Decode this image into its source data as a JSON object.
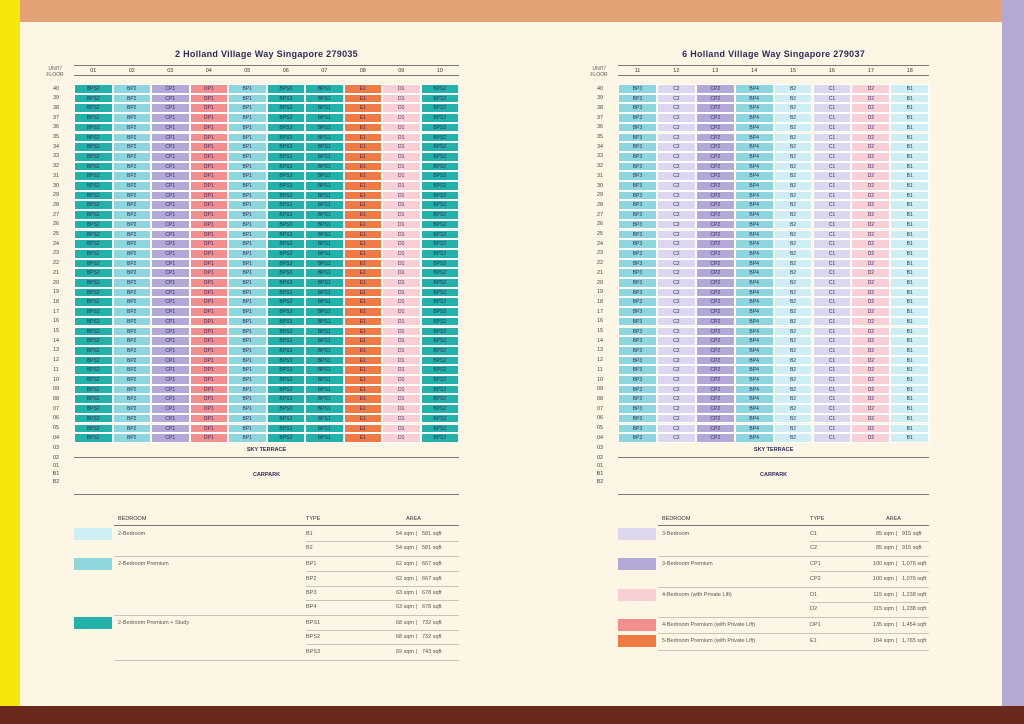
{
  "colors": {
    "frame_top": "#e3a275",
    "frame_left": "#f5e70c",
    "frame_right": "#b4a8d4",
    "frame_bottom": "#6a2a1b",
    "page_bg": "#fdf6e4",
    "B": "#cdeef2",
    "BP": "#8ed6de",
    "BPS": "#23b2a9",
    "C": "#dcd7ee",
    "CP": "#b4a8d8",
    "D": "#f9cfd6",
    "DP": "#f28e8e",
    "E": "#f07a44"
  },
  "corner_label": [
    "UNIT/",
    "FLOOR"
  ],
  "floors_top": [
    "40",
    "39",
    "38",
    "37",
    "36",
    "35",
    "34",
    "33",
    "32",
    "31",
    "30",
    "29",
    "28",
    "27",
    "26",
    "25",
    "24",
    "23",
    "22",
    "21",
    "20",
    "19",
    "18",
    "17",
    "16",
    "15",
    "14",
    "13",
    "12",
    "11",
    "10",
    "09",
    "08",
    "07",
    "06",
    "05",
    "04"
  ],
  "floors_lower": [
    "03",
    "02",
    "01",
    "B1",
    "B2"
  ],
  "sky_terrace_label": "SKY TERRACE",
  "carpark_label": "CARPARK",
  "blocks": [
    {
      "title": "2 Holland Village Way Singapore 279035",
      "units": [
        "01",
        "02",
        "03",
        "04",
        "05",
        "06",
        "07",
        "08",
        "09",
        "10"
      ],
      "types": [
        "BPS2",
        "BP2",
        "CP1",
        "DP1",
        "BP1",
        "BPS3",
        "BPS1",
        "E1",
        "D1",
        "BPS2"
      ],
      "colorkeys": [
        "BPS",
        "BP",
        "CP",
        "DP",
        "BP",
        "BPS",
        "BPS",
        "E",
        "D",
        "BPS"
      ],
      "legend": {
        "headers": [
          "BEDROOM",
          "TYPE",
          "AREA"
        ],
        "groups": [
          {
            "name": "2-Bedroom",
            "color": "B",
            "rows": [
              [
                "B1",
                "54 sqm",
                "581 sqft"
              ],
              [
                "B2",
                "54 sqm",
                "581 sqft"
              ]
            ]
          },
          {
            "name": "2-Bedroom Premium",
            "color": "BP",
            "rows": [
              [
                "BP1",
                "62 sqm",
                "667 sqft"
              ],
              [
                "BP2",
                "62 sqm",
                "667 sqft"
              ],
              [
                "BP3",
                "63 sqm",
                "678 sqft"
              ],
              [
                "BP4",
                "63 sqm",
                "678 sqft"
              ]
            ]
          },
          {
            "name": "2-Bedroom Premium + Study",
            "color": "BPS",
            "rows": [
              [
                "BPS1",
                "68 sqm",
                "732 sqft"
              ],
              [
                "BPS2",
                "68 sqm",
                "732 sqft"
              ],
              [
                "BPS3",
                "69 sqm",
                "743 sqft"
              ]
            ]
          }
        ]
      }
    },
    {
      "title": "6 Holland Village Way Singapore 279037",
      "units": [
        "11",
        "12",
        "13",
        "14",
        "15",
        "16",
        "17",
        "18"
      ],
      "types": [
        "BP3",
        "C2",
        "CP2",
        "BP4",
        "B2",
        "C1",
        "D2",
        "B1"
      ],
      "colorkeys": [
        "BP",
        "C",
        "CP",
        "BP",
        "B",
        "C",
        "D",
        "B"
      ],
      "legend": {
        "headers": [
          "BEDROOM",
          "TYPE",
          "AREA"
        ],
        "groups": [
          {
            "name": "3-Bedroom",
            "color": "C",
            "rows": [
              [
                "C1",
                "85 sqm",
                "915 sqft"
              ],
              [
                "C2",
                "85 sqm",
                "915 sqft"
              ]
            ]
          },
          {
            "name": "3-Bedroom Premium",
            "color": "CP",
            "rows": [
              [
                "CP1",
                "100 sqm",
                "1,076 sqft"
              ],
              [
                "CP2",
                "100 sqm",
                "1,076 sqft"
              ]
            ]
          },
          {
            "name": "4-Bedroom (with Private Lift)",
            "color": "D",
            "rows": [
              [
                "D1",
                "115 sqm",
                "1,238 sqft"
              ],
              [
                "D2",
                "115 sqm",
                "1,238 sqft"
              ]
            ]
          },
          {
            "name": "4-Bedroom Premium (with Private Lift)",
            "color": "DP",
            "rows": [
              [
                "DP1",
                "135 sqm",
                "1,454 sqft"
              ]
            ]
          },
          {
            "name": "5-Bedroom Premium (with Private Lift)",
            "color": "E",
            "rows": [
              [
                "E1",
                "164 sqm",
                "1,765 sqft"
              ]
            ]
          }
        ]
      }
    }
  ]
}
